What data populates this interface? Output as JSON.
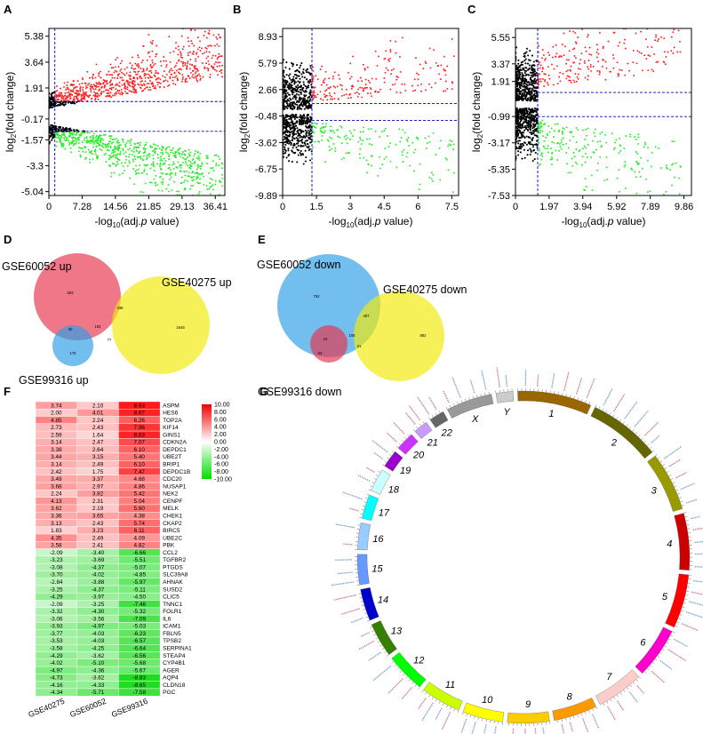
{
  "chart_data": [
    {
      "panel": "A",
      "type": "scatter",
      "title": "",
      "xlabel": "-log10(adj.p value)",
      "ylabel": "log2(fold change)",
      "xticks": [
        "0",
        "7.28",
        "14.56",
        "21.85",
        "29.13",
        "36.41"
      ],
      "xtick_values": [
        0,
        7.28,
        14.56,
        21.85,
        29.13,
        36.41
      ],
      "yticks": [
        "5.38",
        "3.64",
        "1.91",
        "-0.17",
        "-1.57",
        "-3.3",
        "-5.04"
      ],
      "ytick_values": [
        5.38,
        3.64,
        1.91,
        -0.17,
        -1.57,
        -3.3,
        -5.04
      ],
      "xlim": [
        0,
        38.5
      ],
      "ylim": [
        -5.3,
        5.9
      ],
      "thresholds": {
        "x": 1.3,
        "y_up": 1.0,
        "y_down": -1.0
      },
      "series": [
        {
          "name": "up",
          "color": "#ff2020"
        },
        {
          "name": "down",
          "color": "#22ee22"
        },
        {
          "name": "not significant",
          "color": "#000000"
        }
      ]
    },
    {
      "panel": "B",
      "type": "scatter",
      "title": "",
      "xlabel": "-log10(adj.p value)",
      "ylabel": "log2(fold change)",
      "xticks": [
        "0",
        "1.5",
        "3",
        "4.5",
        "6",
        "7.5"
      ],
      "xtick_values": [
        0,
        1.5,
        3,
        4.5,
        6,
        7.5
      ],
      "yticks": [
        "8.93",
        "5.79",
        "2.66",
        "-0.48",
        "-3.62",
        "-6.75",
        "-9.89"
      ],
      "ytick_values": [
        8.93,
        5.79,
        2.66,
        -0.48,
        -3.62,
        -6.75,
        -9.89
      ],
      "xlim": [
        0,
        7.8
      ],
      "ylim": [
        -9.89,
        9.9
      ],
      "thresholds": {
        "x": 1.3,
        "y_up": 1.0,
        "y_down": -1.0
      },
      "series": [
        {
          "name": "up",
          "color": "#ff2020"
        },
        {
          "name": "down",
          "color": "#22ee22"
        },
        {
          "name": "not significant",
          "color": "#000000"
        }
      ]
    },
    {
      "panel": "C",
      "type": "scatter",
      "title": "",
      "xlabel": "-log10(adj.p value)",
      "ylabel": "log2(fold change)",
      "xticks": [
        "0",
        "1.97",
        "3.94",
        "5.92",
        "7.89",
        "9.86"
      ],
      "xtick_values": [
        0,
        1.97,
        3.94,
        5.92,
        7.89,
        9.86
      ],
      "yticks": [
        "5.55",
        "3.37",
        "1.91",
        "-0.99",
        "-3.17",
        "-5.35",
        "-7.53"
      ],
      "ytick_values": [
        5.55,
        3.37,
        1.91,
        -0.99,
        -3.17,
        -5.35,
        -7.53
      ],
      "xlim": [
        0,
        10.3
      ],
      "ylim": [
        -7.53,
        6.3
      ],
      "thresholds": {
        "x": 1.3,
        "y_up": 1.0,
        "y_down": -1.0
      },
      "series": [
        {
          "name": "up",
          "color": "#ff2020"
        },
        {
          "name": "down",
          "color": "#22ee22"
        },
        {
          "name": "not significant",
          "color": "#000000"
        }
      ]
    },
    {
      "panel": "D",
      "type": "venn",
      "sets": [
        {
          "name": "GSE60052 up",
          "color": "#e8364f"
        },
        {
          "name": "GSE40275 up",
          "color": "#f2ea0a"
        },
        {
          "name": "GSE99316 up",
          "color": "#2f9fe8"
        }
      ],
      "regions": {
        "only_60052": 603,
        "only_40275": 1648,
        "only_99316": 175,
        "60052_40275": 336,
        "60052_99316": 30,
        "40275_99316": 77,
        "all": 102
      }
    },
    {
      "panel": "E",
      "type": "venn",
      "sets": [
        {
          "name": "GSE60052 down",
          "color": "#2f9fe8"
        },
        {
          "name": "GSE40275 down",
          "color": "#f2ea0a"
        },
        {
          "name": "GSE99316 down",
          "color": "#e8364f"
        }
      ],
      "regions": {
        "only_60052": 792,
        "only_40275": 882,
        "only_99316": 93,
        "60052_40275": 407,
        "60052_99316": 19,
        "40275_99316": 21,
        "all": 108
      }
    },
    {
      "panel": "F",
      "type": "heatmap",
      "columns": [
        "GSE40275",
        "GSE60052",
        "GSE99316"
      ],
      "rows": [
        "ASPM",
        "HES6",
        "TOP2A",
        "KIF14",
        "GINS1",
        "CDKN2A",
        "DEPDC1",
        "UBE2T",
        "BRIP1",
        "DEPDC1B",
        "CDC20",
        "NUSAP1",
        "NEK2",
        "CENPF",
        "MELK",
        "CHEK1",
        "CKAP2",
        "BIRC5",
        "UBE2C",
        "PBK",
        "CCL2",
        "TGFBR2",
        "PTGDS",
        "SLC39A8",
        "AHNAK",
        "SUSD2",
        "CLIC5",
        "TNNC1",
        "FOLR1",
        "IL6",
        "ICAM1",
        "FBLN5",
        "TPSB2",
        "SERPINA1",
        "STEAP4",
        "CYP4B1",
        "AGER",
        "AQP4",
        "CLDN18",
        "PGC"
      ],
      "value_labels": [
        [
          "3.74",
          "2.10",
          "8.93"
        ],
        [
          "2.00",
          "4.01",
          "8.67"
        ],
        [
          "4.85",
          "2.24",
          "6.26"
        ],
        [
          "2.73",
          "2.43",
          "7.96"
        ],
        [
          "2.59",
          "1.64",
          "8.63"
        ],
        [
          "3.14",
          "2.47",
          "7.07"
        ],
        [
          "3.38",
          "2.64",
          "6.10"
        ],
        [
          "3.44",
          "3.15",
          "5.40"
        ],
        [
          "3.14",
          "2.49",
          "6.10"
        ],
        [
          "2.42",
          "1.75",
          "7.47"
        ],
        [
          "3.49",
          "3.37",
          "4.68"
        ],
        [
          "3.68",
          "2.97",
          "4.86"
        ],
        [
          "2.24",
          "3.82",
          "5.42"
        ],
        [
          "4.13",
          "2.31",
          "5.04"
        ],
        [
          "3.62",
          "2.19",
          "5.60"
        ],
        [
          "3.36",
          "3.65",
          "4.38"
        ],
        [
          "3.13",
          "2.43",
          "5.74"
        ],
        [
          "1.83",
          "3.23",
          "6.11"
        ],
        [
          "4.35",
          "2.49",
          "4.09"
        ],
        [
          "3.58",
          "2.41",
          "4.82"
        ],
        [
          "-2.09",
          "-3.40",
          "-6.66"
        ],
        [
          "-3.23",
          "-3.69",
          "-5.51"
        ],
        [
          "-3.08",
          "-4.37",
          "-5.07"
        ],
        [
          "-3.70",
          "-4.02",
          "-4.85"
        ],
        [
          "-2.84",
          "-3.88",
          "-5.97"
        ],
        [
          "-3.25",
          "-4.37",
          "-5.11"
        ],
        [
          "-4.29",
          "-3.97",
          "-4.50"
        ],
        [
          "-2.09",
          "-3.25",
          "-7.46"
        ],
        [
          "-3.32",
          "-4.30",
          "-5.32"
        ],
        [
          "-3.06",
          "-3.56",
          "-7.09"
        ],
        [
          "-3.93",
          "-4.97",
          "-5.03"
        ],
        [
          "-3.77",
          "-4.03",
          "-6.23"
        ],
        [
          "-3.53",
          "-4.03",
          "-6.57"
        ],
        [
          "-3.58",
          "-4.25",
          "-6.64"
        ],
        [
          "-4.29",
          "-3.62",
          "-6.56"
        ],
        [
          "-4.02",
          "-5.10",
          "-5.68"
        ],
        [
          "-4.97",
          "-4.36",
          "-5.67"
        ],
        [
          "-4.73",
          "-3.62",
          "-8.83"
        ],
        [
          "-4.16",
          "-4.33",
          "-8.65"
        ],
        [
          "-4.34",
          "-5.71",
          "-7.58"
        ]
      ],
      "scale": {
        "ticks": [
          "10.00",
          "8.00",
          "6.00",
          "4.00",
          "2.00",
          "0.00",
          "-2.00",
          "-4.00",
          "-6.00",
          "-8.00",
          "-10.00"
        ],
        "min": -10,
        "max": 10,
        "high_color": "#ee0000",
        "mid_color": "#ffffff",
        "low_color": "#00dd00"
      }
    },
    {
      "panel": "G",
      "type": "circos",
      "chromosomes": [
        {
          "label": "1",
          "size": 249,
          "color": "#996600"
        },
        {
          "label": "2",
          "size": 243,
          "color": "#666600"
        },
        {
          "label": "3",
          "size": 198,
          "color": "#999900"
        },
        {
          "label": "4",
          "size": 191,
          "color": "#cc0000"
        },
        {
          "label": "5",
          "size": 181,
          "color": "#ff0000"
        },
        {
          "label": "6",
          "size": 171,
          "color": "#ff00cc"
        },
        {
          "label": "7",
          "size": 159,
          "color": "#ffcccc"
        },
        {
          "label": "8",
          "size": 146,
          "color": "#ff9900"
        },
        {
          "label": "9",
          "size": 141,
          "color": "#ffcc00"
        },
        {
          "label": "10",
          "size": 136,
          "color": "#ffff00"
        },
        {
          "label": "11",
          "size": 135,
          "color": "#ccff00"
        },
        {
          "label": "12",
          "size": 133,
          "color": "#00ff00"
        },
        {
          "label": "13",
          "size": 115,
          "color": "#358000"
        },
        {
          "label": "14",
          "size": 107,
          "color": "#0000cc"
        },
        {
          "label": "15",
          "size": 102,
          "color": "#6699ff"
        },
        {
          "label": "16",
          "size": 90,
          "color": "#99ccff"
        },
        {
          "label": "17",
          "size": 81,
          "color": "#00ffff"
        },
        {
          "label": "18",
          "size": 78,
          "color": "#ccffff"
        },
        {
          "label": "19",
          "size": 59,
          "color": "#9900cc"
        },
        {
          "label": "20",
          "size": 63,
          "color": "#cc33ff"
        },
        {
          "label": "21",
          "size": 48,
          "color": "#cc99ff"
        },
        {
          "label": "22",
          "size": 51,
          "color": "#666666"
        },
        {
          "label": "X",
          "size": 155,
          "color": "#999999"
        },
        {
          "label": "Y",
          "size": 57,
          "color": "#cccccc"
        }
      ]
    }
  ],
  "panels": {
    "a": "A",
    "b": "B",
    "c": "C",
    "d": "D",
    "e": "E",
    "f": "F",
    "g": "G"
  }
}
